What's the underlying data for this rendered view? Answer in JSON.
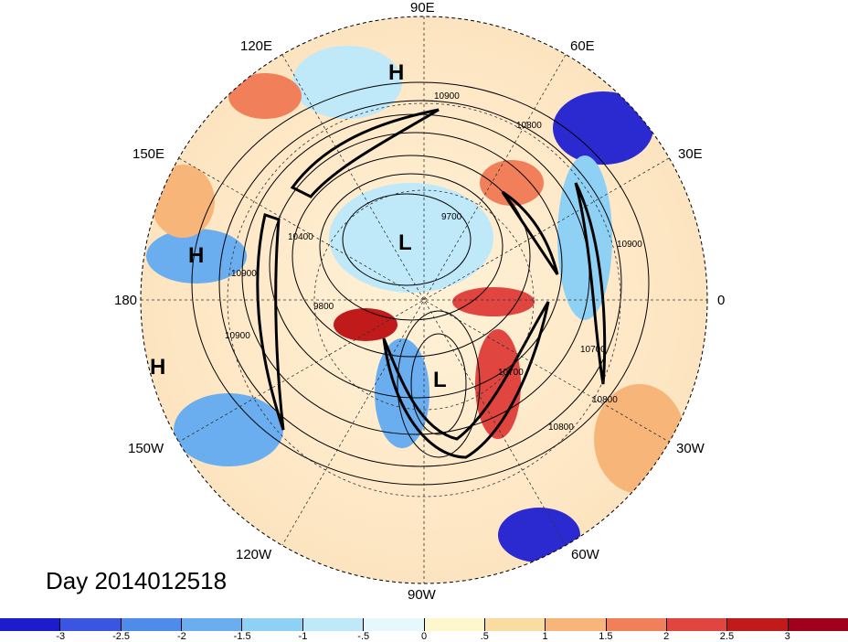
{
  "title": "Day 2014012518",
  "longitude_labels": [
    "90E",
    "60E",
    "30E",
    "0",
    "30W",
    "60W",
    "90W",
    "120W",
    "150W",
    "180",
    "150E",
    "120E"
  ],
  "pressure_centers": [
    "H",
    "H",
    "H",
    "L",
    "L"
  ],
  "contour_labels": [
    "10900",
    "10800",
    "9700",
    "10400",
    "10900",
    "9800",
    "10900",
    "10700",
    "10800",
    "10700",
    "10800",
    "10900"
  ],
  "colorbar": {
    "ticks": [
      "-3",
      "-2.5",
      "-2",
      "-1.5",
      "-1",
      "-.5",
      "0",
      ".5",
      "1",
      "1.5",
      "2",
      "2.5",
      "3"
    ],
    "colors": [
      "#1c1ccc",
      "#3a55e0",
      "#4f8be8",
      "#6aaef0",
      "#8fd0f5",
      "#bfe9f9",
      "#e6f8fb",
      "#fff7cc",
      "#fbdca0",
      "#f7b57a",
      "#f07f5a",
      "#e04540",
      "#c01a1a",
      "#a0001c"
    ]
  }
}
